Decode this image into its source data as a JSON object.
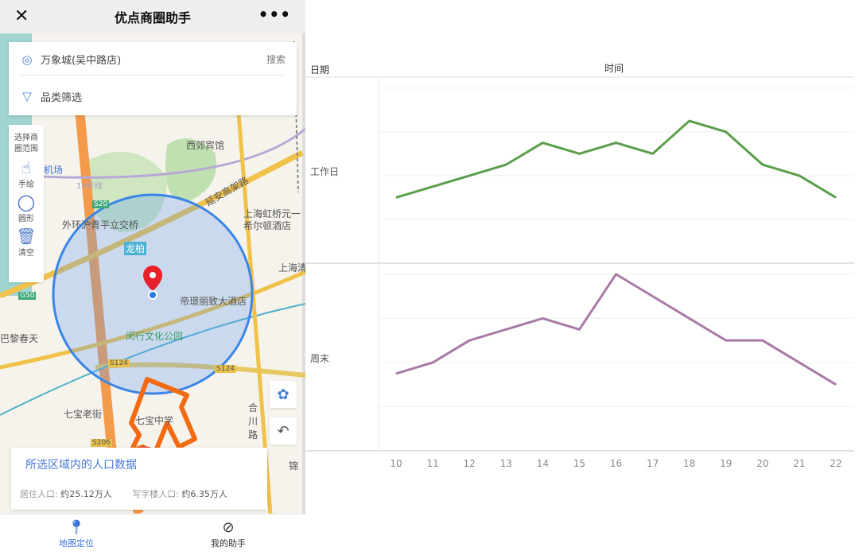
{
  "app": {
    "title": "优点商圈助手",
    "close_icon": "close-icon",
    "more_icon": "more-icon"
  },
  "search": {
    "location": "万象城(吴中路店)",
    "search_label": "搜索",
    "filter_label": "品类筛选"
  },
  "tools": {
    "header": "选择商圈范围",
    "items": [
      {
        "label": "手绘",
        "icon": "hand-draw-icon"
      },
      {
        "label": "圆形",
        "icon": "circle-icon"
      },
      {
        "label": "清空",
        "icon": "trash-icon"
      }
    ]
  },
  "map": {
    "labels": [
      "西郊宾馆",
      "延安高架路",
      "外环沪青平立交桥",
      "龙柏",
      "帝璟丽致大酒店",
      "闵行文化公园",
      "上海虹桥元一希尔顿酒店",
      "巴黎春天",
      "七宝老街",
      "七宝中学",
      "合川路",
      "锦",
      "10号线",
      "S20",
      "G50",
      "S124",
      "S206",
      "上海清",
      "机场"
    ],
    "circle_color": "#3a86e8",
    "pin_color": "#e8202a"
  },
  "popup": {
    "title": "所选区域内的人口数据",
    "resident_label": "居住人口:",
    "resident_value": "约25.12万人",
    "office_label": "写字楼人口:",
    "office_value": "约6.35万人"
  },
  "tabbar": [
    {
      "label": "地图定位",
      "icon": "location-pin-icon",
      "active": true
    },
    {
      "label": "我的助手",
      "icon": "compass-icon",
      "active": false
    }
  ],
  "colors": {
    "accent": "#3b73d9",
    "weekday": "#5a9e4b",
    "weekend": "#a87aa6"
  },
  "chart_data": {
    "type": "line",
    "title": "",
    "row_header": "日期",
    "column_header": "时间",
    "x": [
      10,
      11,
      12,
      13,
      14,
      15,
      16,
      17,
      18,
      19,
      20,
      21,
      22
    ],
    "xlabel": "时间",
    "ylabel": "",
    "y_axis_labels_shown": false,
    "grid": true,
    "panels": [
      {
        "name": "工作日",
        "color": "#5a9e4b",
        "values": [
          1.5,
          1.75,
          2.0,
          2.25,
          2.75,
          2.5,
          2.75,
          2.5,
          3.25,
          3.0,
          2.25,
          2.0,
          1.5
        ],
        "ylim": [
          0,
          4.25
        ]
      },
      {
        "name": "周末",
        "color": "#a87aa6",
        "values": [
          1.75,
          2.0,
          2.5,
          2.75,
          3.0,
          2.75,
          4.0,
          3.5,
          3.0,
          2.5,
          2.5,
          2.0,
          1.5
        ],
        "ylim": [
          0,
          4.25
        ]
      }
    ]
  }
}
